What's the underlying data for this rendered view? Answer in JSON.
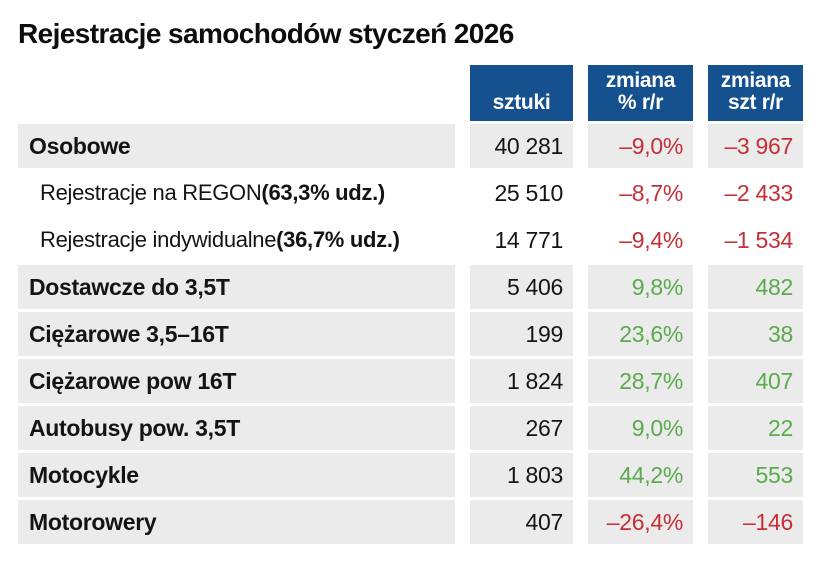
{
  "title": "Rejestracje samochodów styczeń 2026",
  "header": {
    "columns": [
      {
        "id": "sztuki",
        "lines": [
          "sztuki"
        ]
      },
      {
        "id": "zmiana-pct",
        "lines": [
          "zmiana",
          "% r/r"
        ]
      },
      {
        "id": "zmiana-szt",
        "lines": [
          "zmiana",
          "szt r/r"
        ]
      }
    ]
  },
  "rows": [
    {
      "label_regular": "",
      "label_bold": "Osobowe",
      "indent": false,
      "highlight": true,
      "sztuki": "40 281",
      "zmiana_pct": "–9,0%",
      "zmiana_szt": "–3 967",
      "trend": "negative"
    },
    {
      "label_regular": "Rejestracje na REGON ",
      "label_bold": "(63,3% udz.)",
      "indent": true,
      "highlight": false,
      "sztuki": "25 510",
      "zmiana_pct": "–8,7%",
      "zmiana_szt": "–2 433",
      "trend": "negative"
    },
    {
      "label_regular": "Rejestracje indywidualne ",
      "label_bold": "(36,7% udz.)",
      "indent": true,
      "highlight": false,
      "sztuki": "14 771",
      "zmiana_pct": "–9,4%",
      "zmiana_szt": "–1 534",
      "trend": "negative"
    },
    {
      "label_regular": "",
      "label_bold": "Dostawcze do 3,5T",
      "indent": false,
      "highlight": true,
      "sztuki": "5 406",
      "zmiana_pct": "9,8%",
      "zmiana_szt": "482",
      "trend": "positive"
    },
    {
      "label_regular": "",
      "label_bold": "Ciężarowe 3,5–16T",
      "indent": false,
      "highlight": true,
      "sztuki": "199",
      "zmiana_pct": "23,6%",
      "zmiana_szt": "38",
      "trend": "positive"
    },
    {
      "label_regular": "",
      "label_bold": "Ciężarowe pow 16T",
      "indent": false,
      "highlight": true,
      "sztuki": "1 824",
      "zmiana_pct": "28,7%",
      "zmiana_szt": "407",
      "trend": "positive"
    },
    {
      "label_regular": "",
      "label_bold": "Autobusy pow. 3,5T",
      "indent": false,
      "highlight": true,
      "sztuki": "267",
      "zmiana_pct": "9,0%",
      "zmiana_szt": "22",
      "trend": "positive"
    },
    {
      "label_regular": "",
      "label_bold": "Motocykle",
      "indent": false,
      "highlight": true,
      "sztuki": "1 803",
      "zmiana_pct": "44,2%",
      "zmiana_szt": "553",
      "trend": "positive"
    },
    {
      "label_regular": "",
      "label_bold": "Motorowery",
      "indent": false,
      "highlight": true,
      "sztuki": "407",
      "zmiana_pct": "–26,4%",
      "zmiana_szt": "–146",
      "trend": "negative"
    }
  ],
  "colors": {
    "header_bg": "#15518f",
    "header_text": "#ffffff",
    "row_bg": "#ebebeb",
    "ink": "#141414",
    "negative": "#c62f36",
    "positive": "#5aab4c"
  },
  "chart_data": {
    "type": "table",
    "title": "Rejestracje samochodów styczeń 2026",
    "columns": [
      "kategoria",
      "sztuki",
      "zmiana % r/r",
      "zmiana szt r/r"
    ],
    "rows": [
      {
        "kategoria": "Osobowe",
        "sztuki": 40281,
        "zmiana_pct_rr": -9.0,
        "zmiana_szt_rr": -3967
      },
      {
        "kategoria": "Rejestracje na REGON (63,3% udz.)",
        "sztuki": 25510,
        "zmiana_pct_rr": -8.7,
        "zmiana_szt_rr": -2433
      },
      {
        "kategoria": "Rejestracje indywidualne (36,7% udz.)",
        "sztuki": 14771,
        "zmiana_pct_rr": -9.4,
        "zmiana_szt_rr": -1534
      },
      {
        "kategoria": "Dostawcze do 3,5T",
        "sztuki": 5406,
        "zmiana_pct_rr": 9.8,
        "zmiana_szt_rr": 482
      },
      {
        "kategoria": "Ciężarowe 3,5–16T",
        "sztuki": 199,
        "zmiana_pct_rr": 23.6,
        "zmiana_szt_rr": 38
      },
      {
        "kategoria": "Ciężarowe pow 16T",
        "sztuki": 1824,
        "zmiana_pct_rr": 28.7,
        "zmiana_szt_rr": 407
      },
      {
        "kategoria": "Autobusy pow. 3,5T",
        "sztuki": 267,
        "zmiana_pct_rr": 9.0,
        "zmiana_szt_rr": 22
      },
      {
        "kategoria": "Motocykle",
        "sztuki": 1803,
        "zmiana_pct_rr": 44.2,
        "zmiana_szt_rr": 553
      },
      {
        "kategoria": "Motorowery",
        "sztuki": 407,
        "zmiana_pct_rr": -26.4,
        "zmiana_szt_rr": -146
      }
    ],
    "notes": "negative values rendered red, positive values rendered green; sztuki column always dark"
  }
}
